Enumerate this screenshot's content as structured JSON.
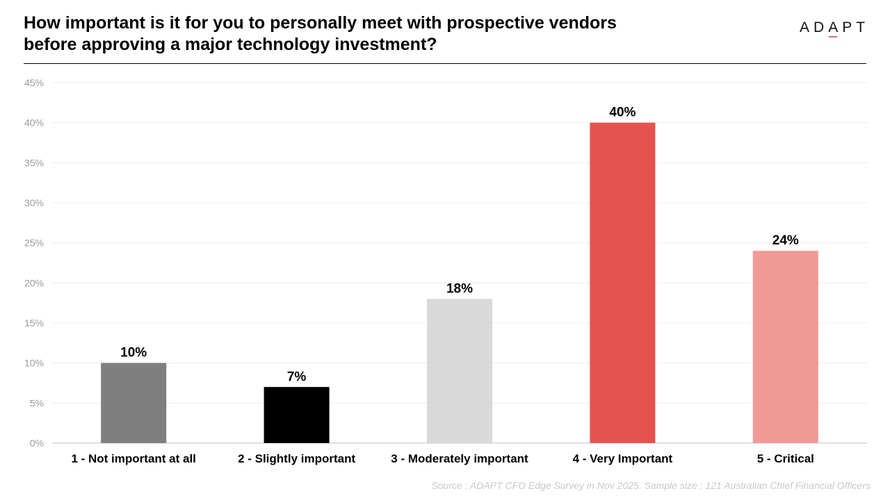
{
  "title_line1": "How important is it for you to personally meet with prospective vendors",
  "title_line2": "before approving a major technology investment?",
  "logo": {
    "parts": [
      "AD",
      "A",
      "PT"
    ]
  },
  "source": "Source : ADAPT CFO Edge Survey in Nov 2025. Sample size : 121 Australian Chief Financial Officers",
  "chart_data": {
    "type": "bar",
    "title": "How important is it for you to personally meet with prospective vendors before approving a major technology investment?",
    "categories": [
      "1 - Not important at all",
      "2 - Slightly important",
      "3 - Moderately important",
      "4 - Very Important",
      "5 - Critical"
    ],
    "values": [
      10,
      7,
      18,
      40,
      24
    ],
    "labels": [
      "10%",
      "7%",
      "18%",
      "40%",
      "24%"
    ],
    "colors": [
      "#7f7f7f",
      "#000000",
      "#d9d9d9",
      "#e5534f",
      "#f19a95"
    ],
    "yticks": [
      "0%",
      "5%",
      "10%",
      "15%",
      "20%",
      "25%",
      "30%",
      "35%",
      "40%",
      "45%"
    ],
    "ylim": [
      0,
      45
    ],
    "grid": true,
    "xlabel": "",
    "ylabel": ""
  }
}
